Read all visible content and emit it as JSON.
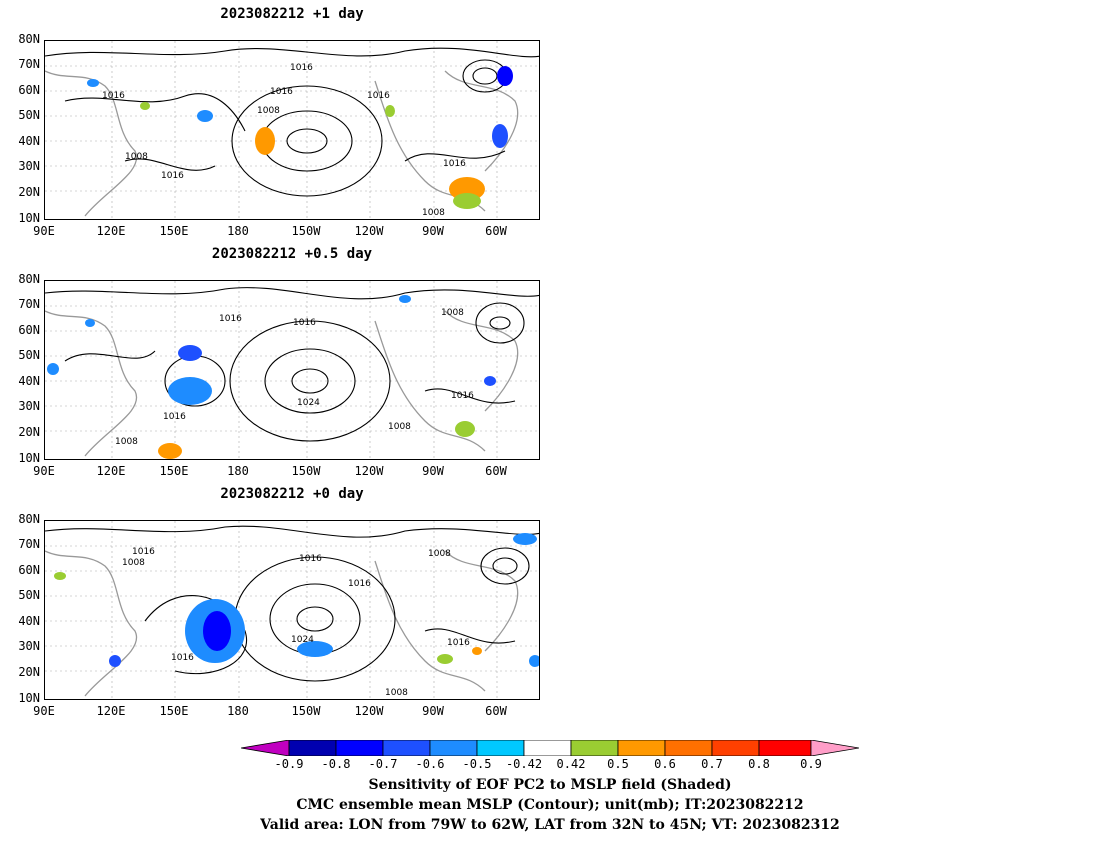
{
  "panels": [
    {
      "title": "2023082212 +1 day",
      "contour_labels": [
        "1016",
        "1016",
        "1016",
        "1016",
        "1008",
        "1008",
        "1016",
        "1016",
        "1008"
      ]
    },
    {
      "title": "2023082212 +0.5 day",
      "contour_labels": [
        "1016",
        "1016",
        "1008",
        "1024",
        "1016",
        "1016",
        "1008",
        "1008"
      ]
    },
    {
      "title": "2023082212 +0 day",
      "contour_labels": [
        "1016",
        "1008",
        "1016",
        "1008",
        "1016",
        "1024",
        "1016",
        "1016",
        "1008"
      ]
    }
  ],
  "lat_labels": [
    "80N",
    "70N",
    "60N",
    "50N",
    "40N",
    "30N",
    "20N",
    "10N"
  ],
  "lon_labels": [
    "90E",
    "120E",
    "150E",
    "180",
    "150W",
    "120W",
    "90W",
    "60W"
  ],
  "colorbar": {
    "labels": [
      "-0.9",
      "-0.8",
      "-0.7",
      "-0.6",
      "-0.5",
      "-0.42",
      "0.42",
      "0.5",
      "0.6",
      "0.7",
      "0.8",
      "0.9"
    ],
    "colors": [
      "#c000c0",
      "#0000b0",
      "#0000ff",
      "#1e50ff",
      "#1e8cff",
      "#00c8ff",
      "#ffffff",
      "#9acd32",
      "#ff9900",
      "#ff7000",
      "#ff4000",
      "#ff0000",
      "#ff9ec8"
    ]
  },
  "caption": [
    "Sensitivity of EOF PC2 to MSLP field (Shaded)",
    "CMC ensemble mean MSLP (Contour); unit(mb); IT:2023082212",
    "Valid area: LON from 79W to 62W, LAT from 32N to 45N; VT: 2023082312"
  ]
}
